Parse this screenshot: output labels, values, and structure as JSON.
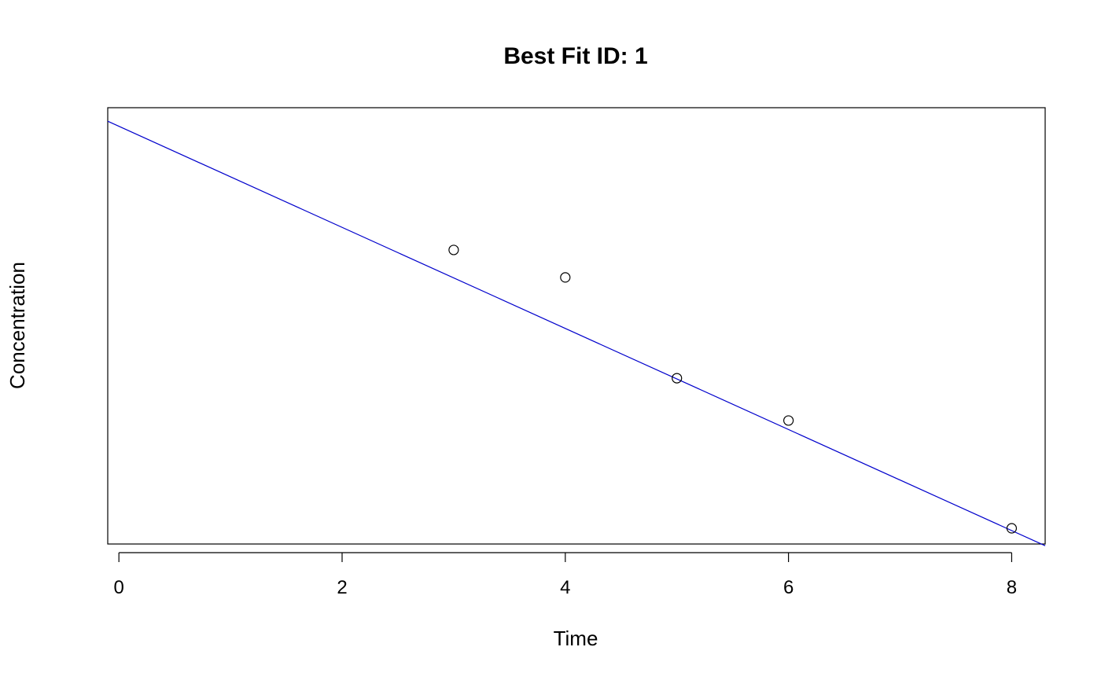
{
  "chart_data": {
    "type": "scatter",
    "title": "Best Fit ID: 1",
    "xlabel": "Time",
    "ylabel": "Concentration",
    "x_ticks": [
      0,
      2,
      4,
      6,
      8
    ],
    "x_tick_labels": [
      "0",
      "2",
      "4",
      "6",
      "8"
    ],
    "xlim": [
      -0.1,
      8.3
    ],
    "ylim": [
      0,
      1
    ],
    "y_axis_ticks_shown": false,
    "grid": false,
    "points": [
      {
        "x": 3,
        "y": 0.674
      },
      {
        "x": 4,
        "y": 0.611
      },
      {
        "x": 5,
        "y": 0.38
      },
      {
        "x": 6,
        "y": 0.283
      },
      {
        "x": 8,
        "y": 0.036
      }
    ],
    "fit_line": {
      "x0": -0.1,
      "y0": 0.969,
      "x1": 8.3,
      "y1": -0.004,
      "color": "#0000CC"
    }
  }
}
